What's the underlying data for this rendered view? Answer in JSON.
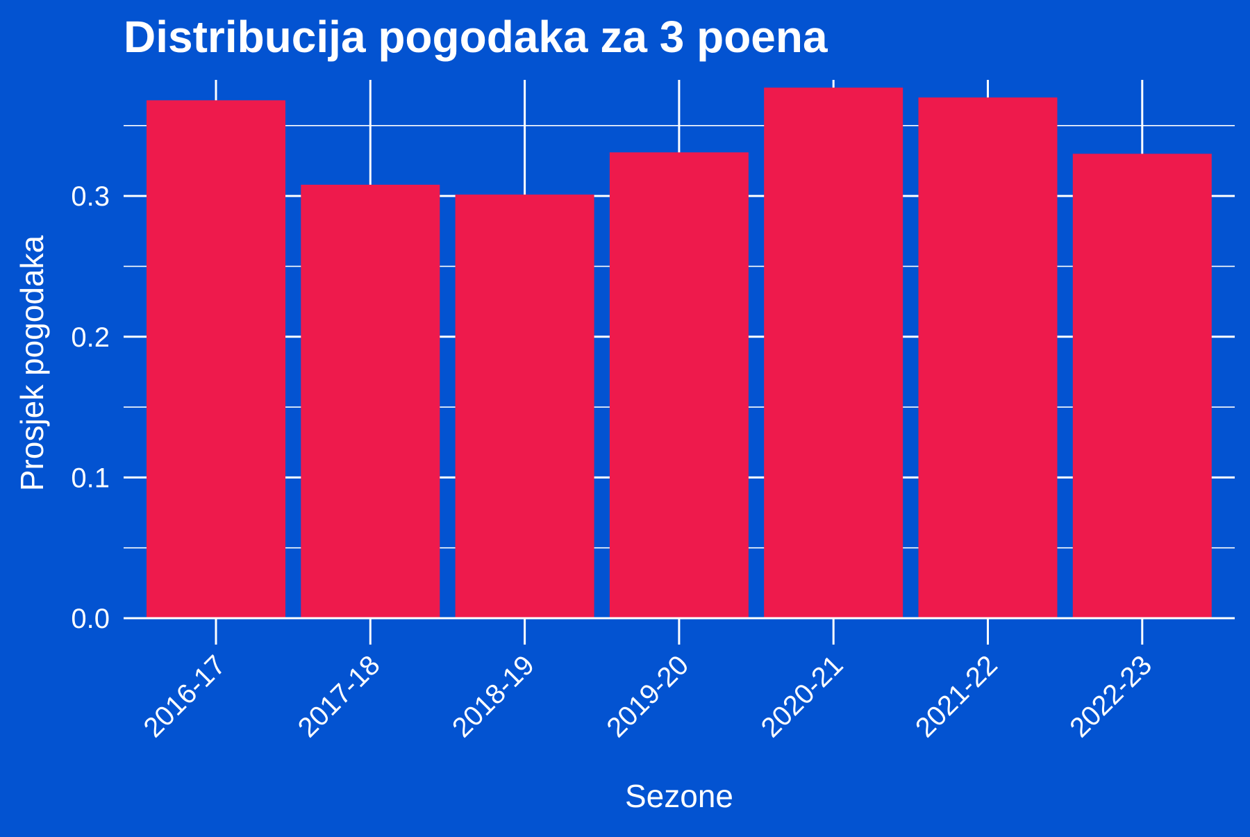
{
  "chart_data": {
    "type": "bar",
    "title": "Distribucija pogodaka za 3 poena",
    "xlabel": "Sezone",
    "ylabel": "Prosjek pogodaka",
    "categories": [
      "2016-17",
      "2017-18",
      "2018-19",
      "2019-20",
      "2020-21",
      "2021-22",
      "2022-23"
    ],
    "values": [
      0.368,
      0.308,
      0.301,
      0.331,
      0.377,
      0.37,
      0.33
    ],
    "ylim": [
      0,
      0.3825
    ],
    "y_ticks": [
      0.0,
      0.1,
      0.2,
      0.3
    ],
    "y_tick_labels": [
      "0.0",
      "0.1",
      "0.2",
      "0.3"
    ],
    "grid": true,
    "legend": "none",
    "colors": {
      "background": "#0353D1",
      "bar": "#EE1A4C",
      "grid": "#FFFFFF",
      "text": "#FFFFFF"
    }
  }
}
